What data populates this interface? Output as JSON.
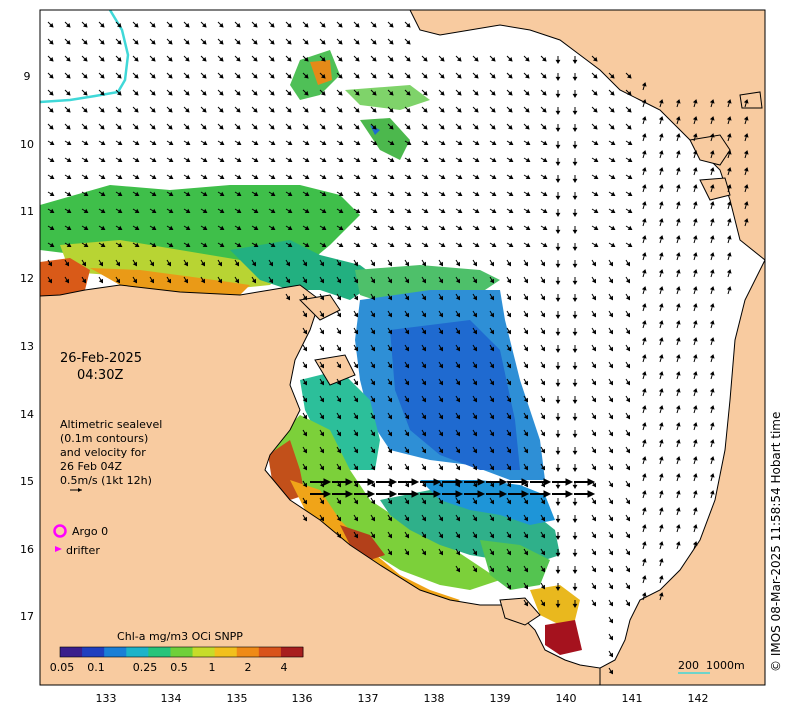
{
  "map": {
    "date": "26-Feb-2025",
    "time": "04:30Z",
    "altimetry_note": [
      "Altimetric sealevel",
      "(0.1m contours)",
      "and velocity for",
      "26 Feb 04Z",
      "0.5m/s (1kt 12h)"
    ],
    "legend": {
      "argo": "Argo 0",
      "drifter": "drifter"
    },
    "colorbar": {
      "title": "Chl-a mg/m3 OCi SNPP",
      "ticks": [
        "0.05",
        "0.1",
        "0.25",
        "0.5",
        "1",
        "2",
        "4"
      ],
      "colors": [
        "#3a1e8c",
        "#1f3fbf",
        "#1a7fd6",
        "#1cb3c9",
        "#27c47a",
        "#6fd03a",
        "#c7dc2a",
        "#f2c01c",
        "#ef8a16",
        "#d9531a",
        "#a81e1e"
      ]
    },
    "scale_bar": {
      "labels": [
        "200",
        "1000m"
      ]
    },
    "credit": "© IMOS 08-Mar-2025 11:58:54 Hobart time",
    "lat_ticks": [
      "9",
      "10",
      "11",
      "12",
      "13",
      "14",
      "15",
      "16",
      "17"
    ],
    "lon_ticks": [
      "133",
      "134",
      "135",
      "136",
      "137",
      "138",
      "139",
      "140",
      "141",
      "142"
    ],
    "colors": {
      "land": "#f8cba0",
      "sea": "#ffffff",
      "coast": "#000000",
      "contour": "#40d8d8",
      "argo": "#ff00ff"
    }
  }
}
